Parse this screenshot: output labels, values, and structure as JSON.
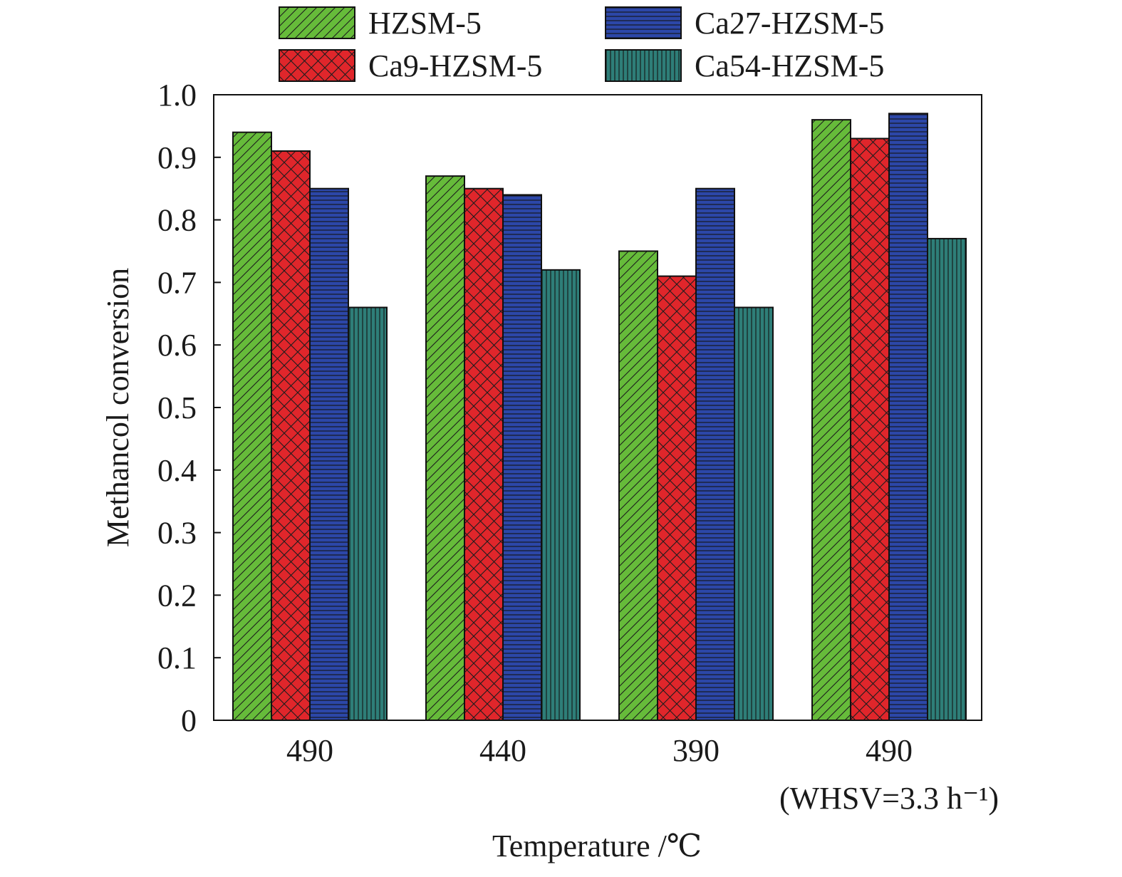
{
  "chart_data": {
    "type": "bar",
    "title": "",
    "xlabel": "Temperature /℃",
    "ylabel": "Methancol conversion",
    "ylim": [
      0,
      1.0
    ],
    "yticks": [
      "0",
      "0.1",
      "0.2",
      "0.3",
      "0.4",
      "0.5",
      "0.6",
      "0.7",
      "0.8",
      "0.9",
      "1.0"
    ],
    "categories": [
      "490",
      "440",
      "390",
      "490"
    ],
    "category_sublabels": [
      "",
      "",
      "",
      "(WHSV=3.3 h⁻¹)"
    ],
    "grid": false,
    "legend": {
      "placement": "top",
      "columns": 2
    },
    "series": [
      {
        "name": "HZSM-5",
        "values": [
          0.94,
          0.87,
          0.75,
          0.96
        ],
        "color": "#66bb3a",
        "pattern": "diagonal"
      },
      {
        "name": "Ca9-HZSM-5",
        "values": [
          0.91,
          0.85,
          0.71,
          0.93
        ],
        "color": "#e0262b",
        "pattern": "crosshatch"
      },
      {
        "name": "Ca27-HZSM-5",
        "values": [
          0.85,
          0.84,
          0.85,
          0.97
        ],
        "color": "#2c47a8",
        "pattern": "horizontal"
      },
      {
        "name": "Ca54-HZSM-5",
        "values": [
          0.66,
          0.72,
          0.66,
          0.77
        ],
        "color": "#2e7e78",
        "pattern": "vertical"
      }
    ]
  }
}
